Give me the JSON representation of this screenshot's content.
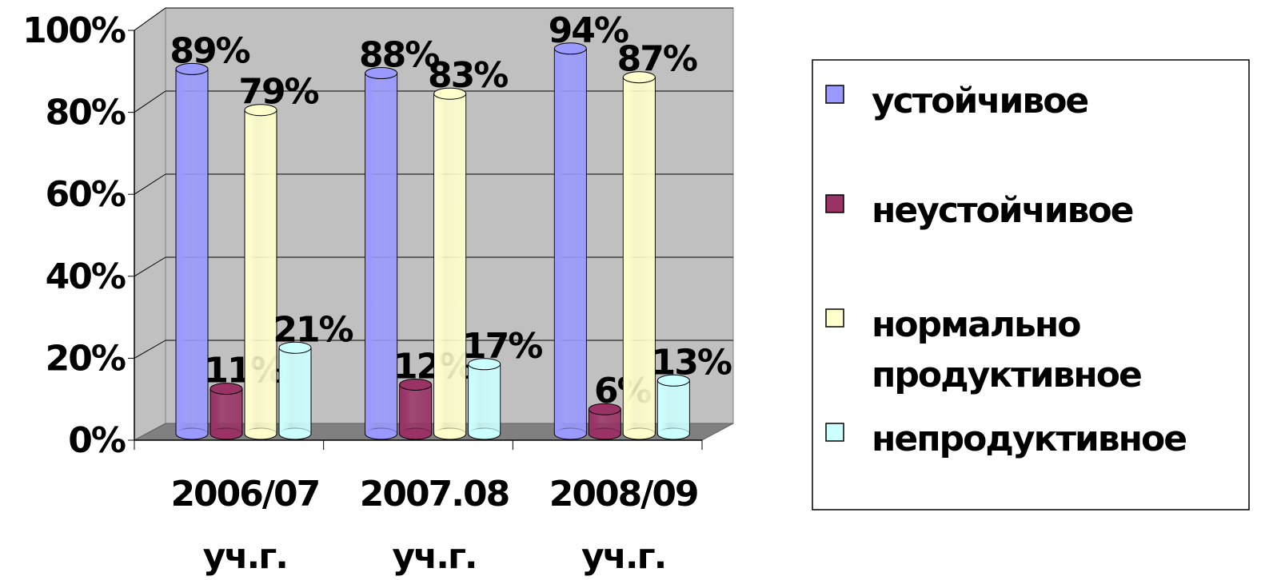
{
  "chart_data": {
    "type": "bar",
    "categories": [
      "2006/07 уч.г.",
      "2007.08 уч.г.",
      "2008/09 уч.г."
    ],
    "series": [
      {
        "name": "устойчивое",
        "color": "#9999ff",
        "values": [
          89,
          88,
          94
        ],
        "value_labels": [
          "89%",
          "88%",
          "94%"
        ]
      },
      {
        "name": "неустойчивое",
        "color": "#993366",
        "values": [
          11,
          12,
          6
        ],
        "value_labels": [
          "11%",
          "12%",
          "6%"
        ]
      },
      {
        "name": "нормально продуктивное",
        "color": "#ffffcc",
        "values": [
          79,
          83,
          87
        ],
        "value_labels": [
          "79%",
          "83%",
          "87%"
        ]
      },
      {
        "name": "непродуктивное",
        "color": "#ccffff",
        "values": [
          21,
          17,
          13
        ],
        "value_labels": [
          "21%",
          "17%",
          "13%"
        ]
      }
    ],
    "ylim": [
      0,
      100
    ],
    "yticks": [
      {
        "value": 0,
        "label": "0%"
      },
      {
        "value": 20,
        "label": "20%"
      },
      {
        "value": 40,
        "label": "40%"
      },
      {
        "value": 60,
        "label": "60%"
      },
      {
        "value": 80,
        "label": "80%"
      },
      {
        "value": 100,
        "label": "100%"
      }
    ],
    "grid": true,
    "legend": "right"
  }
}
